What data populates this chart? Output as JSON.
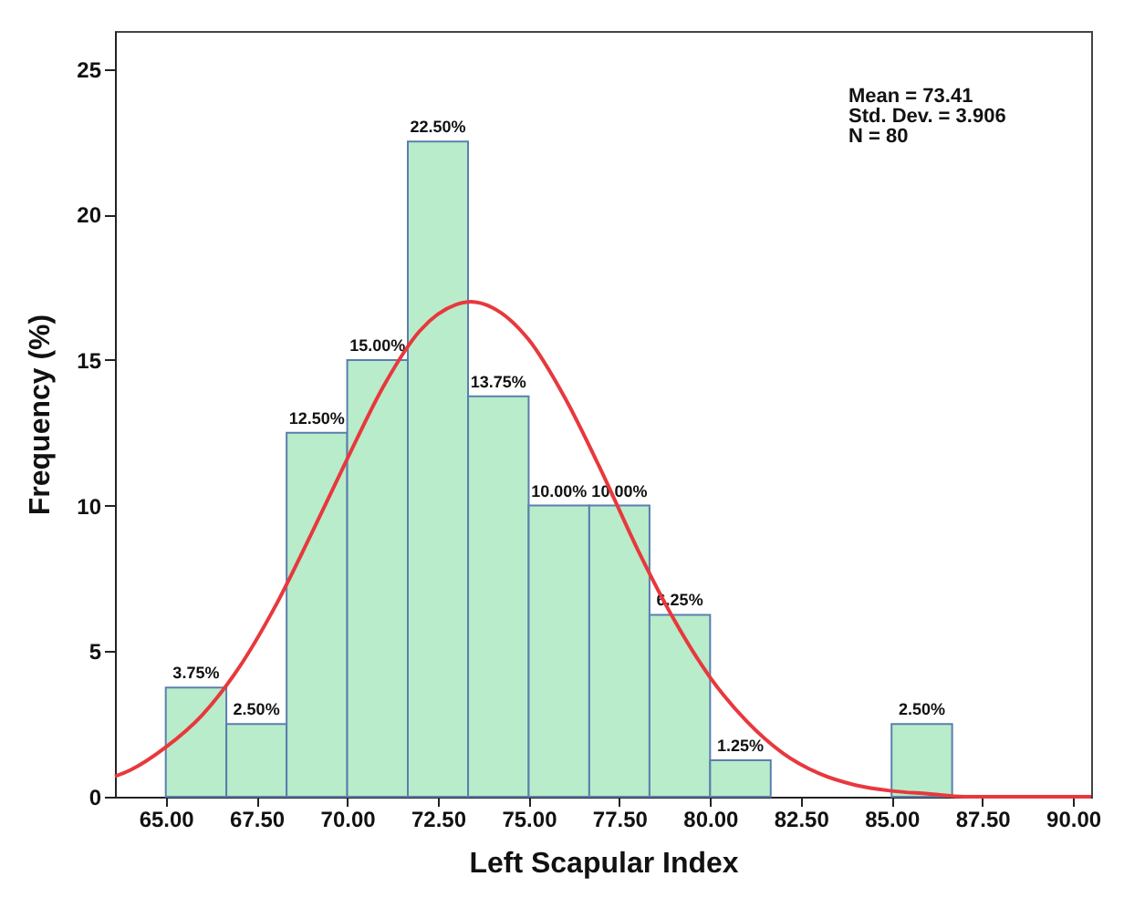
{
  "chart_data": {
    "type": "histogram",
    "xlabel": "Left Scapular Index",
    "ylabel": "Frequency (%)",
    "bins": [
      65,
      66.67,
      68.33,
      70,
      71.67,
      73.33,
      75,
      76.67,
      78.33,
      80,
      81.67,
      83.33,
      85,
      86.67
    ],
    "values": [
      3.75,
      2.5,
      12.5,
      15,
      22.5,
      13.75,
      10,
      10,
      6.25,
      1.25,
      0,
      0,
      2.5
    ],
    "value_labels": [
      "3.75%",
      "2.50%",
      "12.50%",
      "15.00%",
      "22.50%",
      "13.75%",
      "10.00%",
      "10.00%",
      "6.25%",
      "1.25%",
      null,
      null,
      "2.50%"
    ],
    "color": "#b9ecca",
    "series": [
      {
        "type": "line",
        "color": "#e8383d",
        "x": [
          63.6,
          64,
          65,
          66,
          67,
          68,
          69,
          70,
          71,
          72,
          73,
          73.41,
          74,
          75,
          76,
          77,
          78,
          79,
          80,
          81,
          82,
          83,
          84,
          85,
          86,
          87,
          88,
          90.5
        ],
        "values": [
          0.7,
          0.9,
          1.7,
          2.8,
          4.4,
          6.5,
          9.0,
          11.6,
          14.1,
          16.0,
          16.9,
          17.0,
          16.8,
          15.7,
          13.7,
          11.2,
          8.5,
          6.1,
          4.1,
          2.6,
          1.5,
          0.8,
          0.4,
          0.2,
          0.1,
          0.0,
          0.0,
          0.0
        ]
      }
    ],
    "xlim": [
      63.6,
      90.5
    ],
    "xticks": [
      {
        "value": 65,
        "label": "65.00"
      },
      {
        "value": 67.5,
        "label": "67.50"
      },
      {
        "value": 70,
        "label": "70.00"
      },
      {
        "value": 72.5,
        "label": "72.50"
      },
      {
        "value": 75,
        "label": "75.00"
      },
      {
        "value": 77.5,
        "label": "77.50"
      },
      {
        "value": 80,
        "label": "80.00"
      },
      {
        "value": 82.5,
        "label": "82.50"
      },
      {
        "value": 85,
        "label": "85.00"
      },
      {
        "value": 87.5,
        "label": "87.50"
      },
      {
        "value": 90,
        "label": "90.00"
      }
    ],
    "ylim": [
      0,
      26.3
    ],
    "yticks": [
      0,
      5,
      10,
      15,
      20,
      25
    ],
    "annotations": [
      "Mean = 73.41",
      "Std. Dev. = 3.906",
      "N = 80"
    ],
    "grid": false
  }
}
